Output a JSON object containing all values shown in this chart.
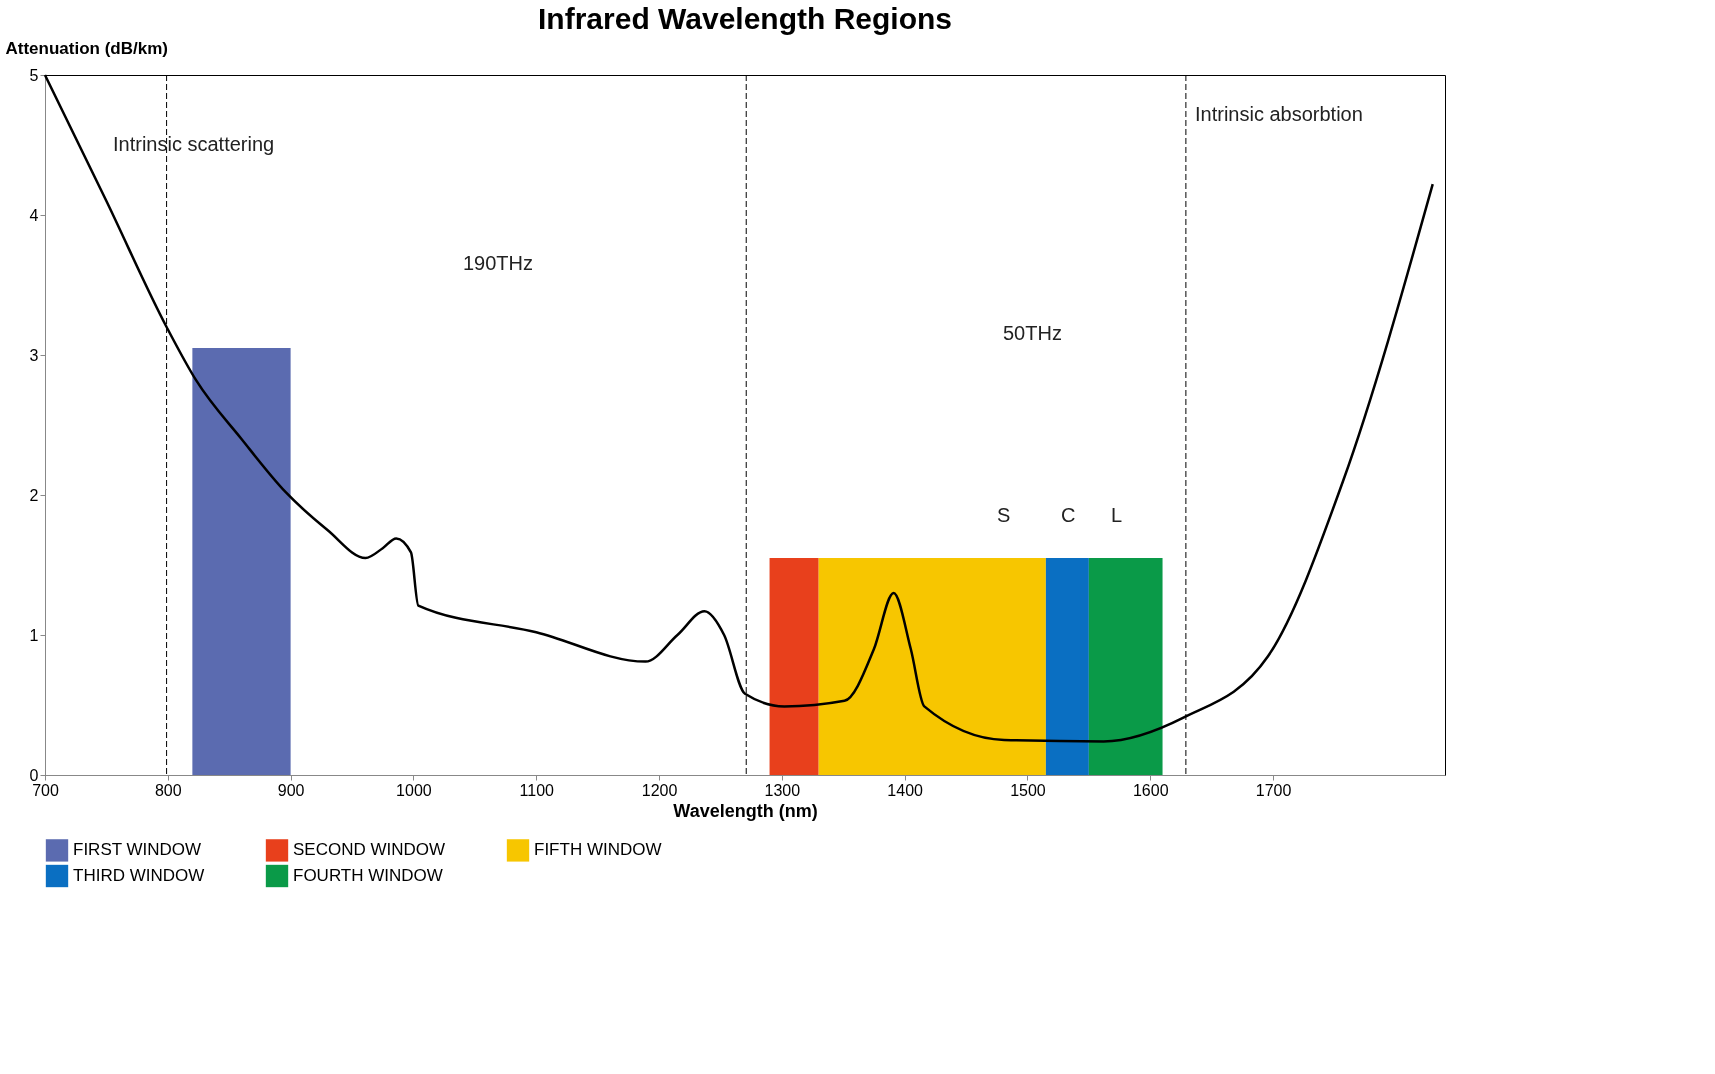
{
  "chart_data": {
    "type": "line",
    "title": "Infrared Wavelength Regions",
    "xlabel": "Wavelength (nm)",
    "ylabel": "Attenuation (dB/km)",
    "xlim": [
      700,
      1840
    ],
    "ylim": [
      0,
      5
    ],
    "xticks": [
      700,
      800,
      900,
      1000,
      1100,
      1200,
      1300,
      1400,
      1500,
      1600,
      1700
    ],
    "yticks": [
      0,
      1,
      2,
      3,
      4,
      5
    ],
    "grid": false,
    "legend": "bottom",
    "series": [
      {
        "name": "FIRST WINDOW",
        "type": "area",
        "color": "#5b6bb0",
        "x": [
          820,
          900
        ],
        "values": [
          3.05,
          3.05
        ]
      },
      {
        "name": "SECOND WINDOW",
        "type": "area",
        "color": "#e8401c",
        "x": [
          1290,
          1330
        ],
        "values": [
          1.55,
          1.55
        ]
      },
      {
        "name": "FIFTH WINDOW",
        "type": "area",
        "color": "#f7c600",
        "x": [
          1330,
          1515
        ],
        "values": [
          1.55,
          1.55
        ]
      },
      {
        "name": "THIRD WINDOW",
        "type": "area",
        "color": "#0a6fc2",
        "x": [
          1515,
          1550
        ],
        "values": [
          1.55,
          1.55
        ]
      },
      {
        "name": "FOURTH WINDOW",
        "type": "area",
        "color": "#0a9a48",
        "x": [
          1550,
          1610
        ],
        "values": [
          1.55,
          1.55
        ]
      },
      {
        "color": "#000000",
        "x": [
          700,
          750,
          799,
          823,
          860,
          896,
          930,
          961,
          975,
          986,
          998,
          1004,
          1100,
          1189,
          1215,
          1237,
          1253,
          1270,
          1302,
          1351,
          1375,
          1391,
          1405,
          1416,
          1481,
          1562,
          1627,
          1696,
          1757,
          1830
        ],
        "values": [
          5.0,
          4.1,
          3.2,
          2.82,
          2.4,
          2.02,
          1.75,
          1.55,
          1.62,
          1.69,
          1.59,
          1.21,
          1.02,
          0.81,
          1.0,
          1.17,
          1.0,
          0.58,
          0.49,
          0.53,
          0.9,
          1.3,
          0.9,
          0.49,
          0.25,
          0.24,
          0.41,
          0.85,
          2.1,
          4.22
        ]
      }
    ],
    "ref_lines": [
      {
        "axis": "x",
        "value": 799,
        "line_style": "dashed"
      },
      {
        "axis": "x",
        "value": 1271,
        "line_style": "dashed"
      },
      {
        "axis": "x",
        "value": 1629,
        "line_style": "dashed"
      }
    ],
    "annotations": [
      "Intrinsic scattering",
      "Intrinsic absorbtion",
      "190THz",
      "50THz",
      "S",
      "C",
      "L"
    ]
  }
}
